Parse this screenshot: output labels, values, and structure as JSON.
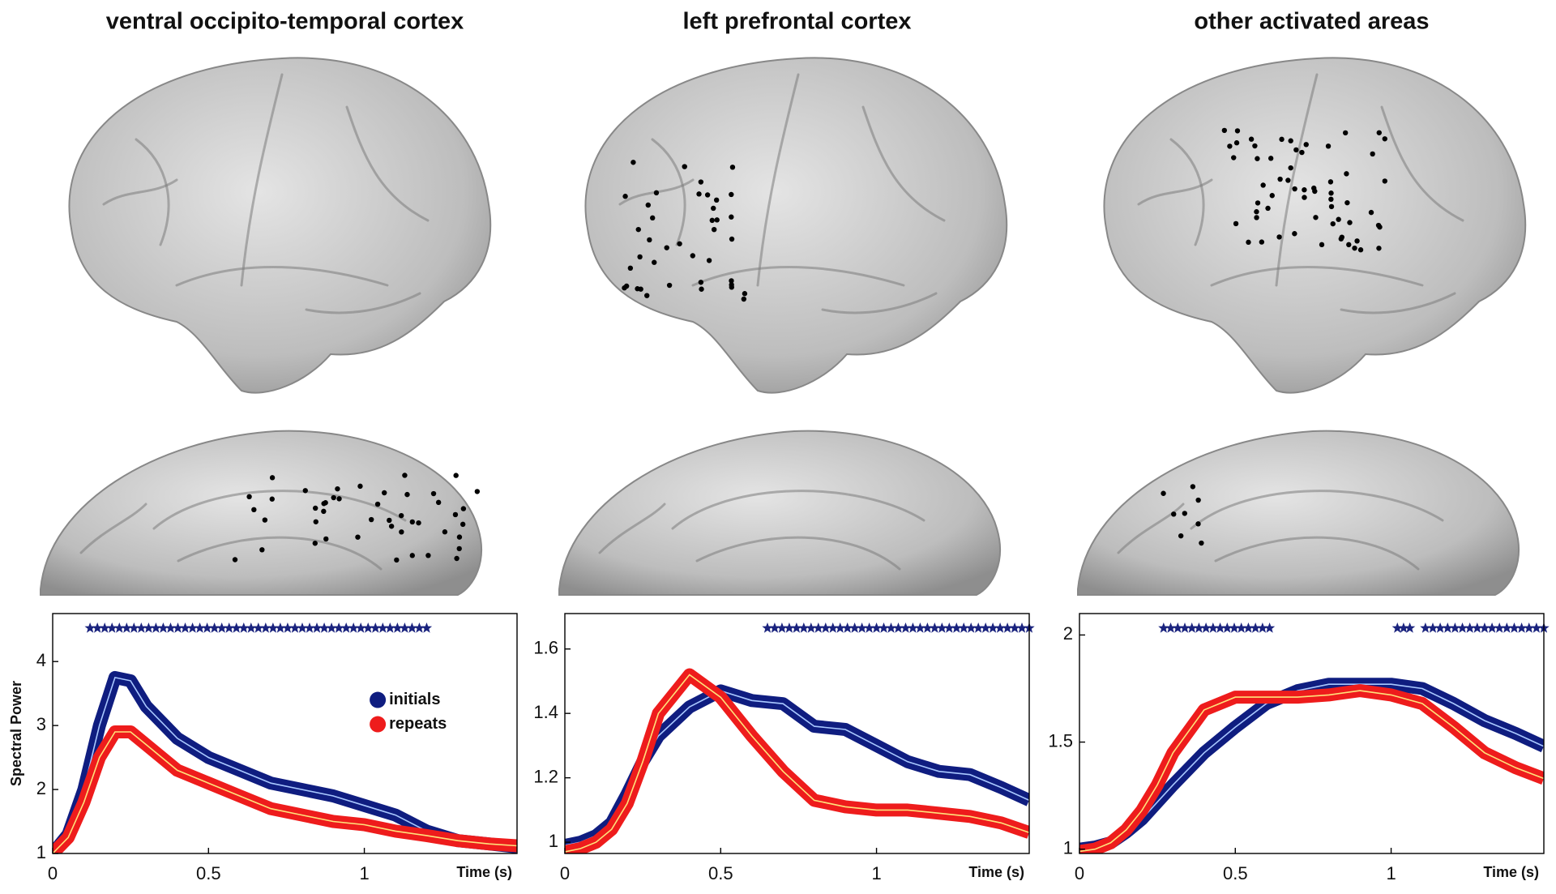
{
  "chart_data": [
    {
      "type": "line",
      "title": "ventral occipito-temporal cortex",
      "xlabel": "Time (s)",
      "ylabel": "Spectral Power",
      "x": [
        0,
        0.05,
        0.1,
        0.15,
        0.2,
        0.25,
        0.3,
        0.4,
        0.5,
        0.6,
        0.7,
        0.8,
        0.9,
        1.0,
        1.1,
        1.2,
        1.3,
        1.4,
        1.49
      ],
      "series": [
        {
          "name": "initials",
          "color": "#0f1d80",
          "values": [
            1,
            1.3,
            2.0,
            3.0,
            3.75,
            3.7,
            3.3,
            2.8,
            2.5,
            2.3,
            2.1,
            2.0,
            1.9,
            1.75,
            1.6,
            1.35,
            1.2,
            1.15,
            1.1
          ]
        },
        {
          "name": "repeats",
          "color": "#ee1c1c",
          "values": [
            1,
            1.25,
            1.8,
            2.5,
            2.9,
            2.9,
            2.7,
            2.3,
            2.1,
            1.9,
            1.7,
            1.6,
            1.5,
            1.45,
            1.35,
            1.28,
            1.2,
            1.15,
            1.12
          ]
        }
      ],
      "significant": [
        [
          0.12,
          1.2
        ]
      ],
      "xlim": [
        0,
        1.49
      ],
      "xticks": [
        0,
        0.5,
        1
      ],
      "ylim": [
        1,
        4.75
      ],
      "yticks": [
        1,
        2,
        3,
        4
      ],
      "legend": "center right"
    },
    {
      "type": "line",
      "title": "left prefrontal cortex",
      "xlabel": "Time (s)",
      "x": [
        0,
        0.05,
        0.1,
        0.15,
        0.2,
        0.25,
        0.3,
        0.4,
        0.5,
        0.6,
        0.7,
        0.8,
        0.9,
        1.0,
        1.1,
        1.2,
        1.3,
        1.4,
        1.49
      ],
      "series": [
        {
          "name": "initials",
          "color": "#0f1d80",
          "values": [
            0.99,
            1.0,
            1.02,
            1.06,
            1.15,
            1.25,
            1.33,
            1.42,
            1.47,
            1.44,
            1.43,
            1.36,
            1.35,
            1.3,
            1.25,
            1.22,
            1.21,
            1.17,
            1.13
          ]
        },
        {
          "name": "repeats",
          "color": "#ee1c1c",
          "values": [
            0.97,
            0.98,
            1.0,
            1.04,
            1.12,
            1.25,
            1.4,
            1.52,
            1.45,
            1.33,
            1.22,
            1.13,
            1.11,
            1.1,
            1.1,
            1.09,
            1.08,
            1.06,
            1.03
          ]
        }
      ],
      "significant": [
        [
          0.65,
          1.49
        ]
      ],
      "xlim": [
        0,
        1.49
      ],
      "xticks": [
        0,
        0.5,
        1
      ],
      "ylim": [
        0.965,
        1.71
      ],
      "yticks": [
        1,
        1.2,
        1.4,
        1.6
      ]
    },
    {
      "type": "line",
      "title": "other activated areas",
      "xlabel": "Time (s)",
      "x": [
        0,
        0.05,
        0.1,
        0.15,
        0.2,
        0.25,
        0.3,
        0.4,
        0.5,
        0.6,
        0.7,
        0.8,
        0.9,
        1.0,
        1.1,
        1.2,
        1.3,
        1.4,
        1.49
      ],
      "series": [
        {
          "name": "initials",
          "color": "#0f1d80",
          "values": [
            1.0,
            1.01,
            1.03,
            1.08,
            1.14,
            1.22,
            1.3,
            1.45,
            1.57,
            1.68,
            1.74,
            1.77,
            1.77,
            1.77,
            1.75,
            1.68,
            1.6,
            1.54,
            1.48
          ]
        },
        {
          "name": "repeats",
          "color": "#ee1c1c",
          "values": [
            0.99,
            1.0,
            1.03,
            1.09,
            1.18,
            1.3,
            1.45,
            1.65,
            1.71,
            1.71,
            1.71,
            1.72,
            1.74,
            1.72,
            1.68,
            1.57,
            1.45,
            1.38,
            1.33
          ]
        }
      ],
      "significant": [
        [
          0.27,
          0.61
        ],
        [
          1.02,
          1.06
        ],
        [
          1.11,
          1.49
        ]
      ],
      "xlim": [
        0,
        1.49
      ],
      "xticks": [
        0,
        0.5,
        1
      ],
      "ylim": [
        0.98,
        2.1
      ],
      "yticks": [
        1,
        1.5,
        2
      ]
    }
  ]
}
